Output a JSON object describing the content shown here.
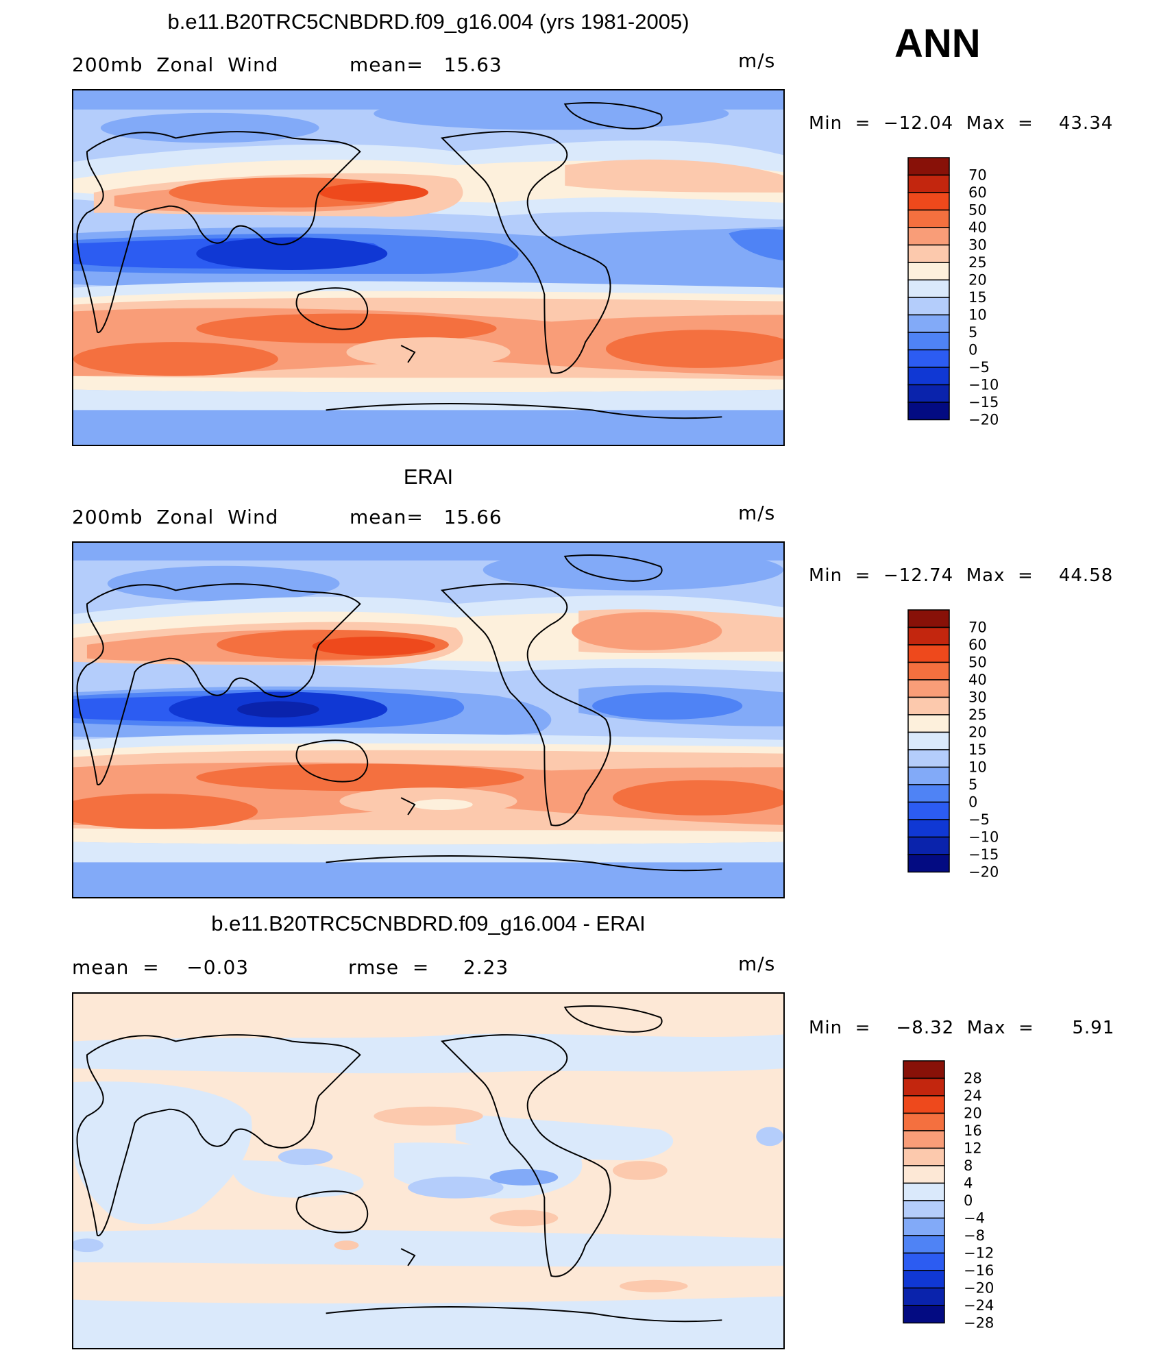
{
  "season": "ANN",
  "palettes": {
    "abs": [
      "#030b82",
      "#0a23ac",
      "#1038d4",
      "#2c5cf2",
      "#4f83f5",
      "#82aaf8",
      "#b4cdfb",
      "#dae9fb",
      "#fdf0dc",
      "#fcc9ad",
      "#f99d78",
      "#f4703f",
      "#ee491c",
      "#c3260e",
      "#881108"
    ],
    "diff": [
      "#030b82",
      "#0a23ac",
      "#1038d4",
      "#2c5cf2",
      "#4f83f5",
      "#82aaf8",
      "#b4cdfb",
      "#dae9fb",
      "#fde8d6",
      "#fcc9ad",
      "#f99d78",
      "#f4703f",
      "#ee491c",
      "#c3260e",
      "#881108"
    ]
  },
  "panels": [
    {
      "title": "b.e11.B20TRC5CNBDRD.f09_g16.004 (yrs 1981-2005)",
      "left_label": "200mb  Zonal  Wind",
      "center_label": "mean=   15.63",
      "units": "m/s",
      "minmax": "Min  =  −12.04  Max  =    43.34",
      "colorbar_labels": [
        "70",
        "60",
        "50",
        "40",
        "30",
        "25",
        "20",
        "15",
        "10",
        "5",
        "0",
        "−5",
        "−10",
        "−15",
        "−20"
      ]
    },
    {
      "title": "ERAI",
      "left_label": "200mb  Zonal  Wind",
      "center_label": "mean=   15.66",
      "units": "m/s",
      "minmax": "Min  =  −12.74  Max  =    44.58",
      "colorbar_labels": [
        "70",
        "60",
        "50",
        "40",
        "30",
        "25",
        "20",
        "15",
        "10",
        "5",
        "0",
        "−5",
        "−10",
        "−15",
        "−20"
      ]
    },
    {
      "title": "b.e11.B20TRC5CNBDRD.f09_g16.004 - ERAI",
      "left_label": "mean  =    −0.03",
      "center_label": "rmse  =     2.23",
      "units": "m/s",
      "minmax": "Min  =    −8.32  Max  =      5.91",
      "colorbar_labels": [
        "28",
        "24",
        "20",
        "16",
        "12",
        "8",
        "4",
        "0",
        "−4",
        "−8",
        "−12",
        "−16",
        "−20",
        "−24",
        "−28"
      ]
    }
  ]
}
